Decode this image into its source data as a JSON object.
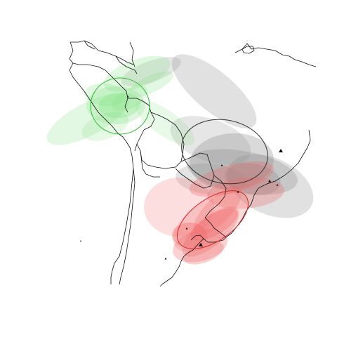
{
  "map": {
    "colors": {
      "background": "#ffffff",
      "borders": "#111111",
      "green_fill": "#7ee07e",
      "green_outline": "#2fbf2f",
      "gray_fill": "#8c8c8c",
      "gray_outline": "#333333",
      "red_fill": "#f06a6a",
      "red_outline": "#d22b2b",
      "points": "#000000"
    },
    "clusters": [
      {
        "name": "green",
        "ellipses": 9,
        "outline_ellipses": 1
      },
      {
        "name": "gray",
        "ellipses": 8,
        "outline_ellipses": 1
      },
      {
        "name": "red",
        "ellipses": 10,
        "outline_ellipses": 2
      }
    ],
    "point_markers": 10
  }
}
